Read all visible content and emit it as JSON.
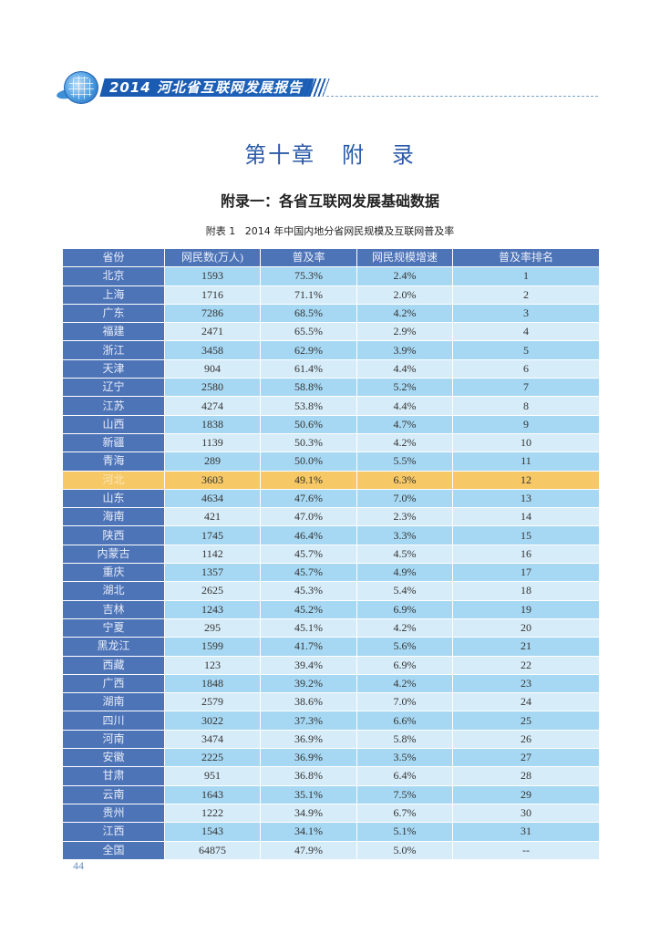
{
  "header": {
    "report_title": "2014 河北省互联网发展报告",
    "icon": "globe-icon"
  },
  "chapter": {
    "title": "第十章   附   录"
  },
  "section": {
    "title": "附录一：各省互联网发展基础数据"
  },
  "table": {
    "caption": "附表 1   2014 年中国内地分省网民规模及互联网普及率",
    "headers": [
      "省份",
      "网民数(万人)",
      "普及率",
      "网民规模增速",
      "普及率排名"
    ],
    "highlight_row": "河北",
    "highlight_color": "#f6c866",
    "rows": [
      {
        "province": "北京",
        "users": "1593",
        "rate": "75.3%",
        "growth": "2.4%",
        "rank": "1"
      },
      {
        "province": "上海",
        "users": "1716",
        "rate": "71.1%",
        "growth": "2.0%",
        "rank": "2"
      },
      {
        "province": "广东",
        "users": "7286",
        "rate": "68.5%",
        "growth": "4.2%",
        "rank": "3"
      },
      {
        "province": "福建",
        "users": "2471",
        "rate": "65.5%",
        "growth": "2.9%",
        "rank": "4"
      },
      {
        "province": "浙江",
        "users": "3458",
        "rate": "62.9%",
        "growth": "3.9%",
        "rank": "5"
      },
      {
        "province": "天津",
        "users": "904",
        "rate": "61.4%",
        "growth": "4.4%",
        "rank": "6"
      },
      {
        "province": "辽宁",
        "users": "2580",
        "rate": "58.8%",
        "growth": "5.2%",
        "rank": "7"
      },
      {
        "province": "江苏",
        "users": "4274",
        "rate": "53.8%",
        "growth": "4.4%",
        "rank": "8"
      },
      {
        "province": "山西",
        "users": "1838",
        "rate": "50.6%",
        "growth": "4.7%",
        "rank": "9"
      },
      {
        "province": "新疆",
        "users": "1139",
        "rate": "50.3%",
        "growth": "4.2%",
        "rank": "10"
      },
      {
        "province": "青海",
        "users": "289",
        "rate": "50.0%",
        "growth": "5.5%",
        "rank": "11"
      },
      {
        "province": "河北",
        "users": "3603",
        "rate": "49.1%",
        "growth": "6.3%",
        "rank": "12"
      },
      {
        "province": "山东",
        "users": "4634",
        "rate": "47.6%",
        "growth": "7.0%",
        "rank": "13"
      },
      {
        "province": "海南",
        "users": "421",
        "rate": "47.0%",
        "growth": "2.3%",
        "rank": "14"
      },
      {
        "province": "陕西",
        "users": "1745",
        "rate": "46.4%",
        "growth": "3.3%",
        "rank": "15"
      },
      {
        "province": "内蒙古",
        "users": "1142",
        "rate": "45.7%",
        "growth": "4.5%",
        "rank": "16"
      },
      {
        "province": "重庆",
        "users": "1357",
        "rate": "45.7%",
        "growth": "4.9%",
        "rank": "17"
      },
      {
        "province": "湖北",
        "users": "2625",
        "rate": "45.3%",
        "growth": "5.4%",
        "rank": "18"
      },
      {
        "province": "吉林",
        "users": "1243",
        "rate": "45.2%",
        "growth": "6.9%",
        "rank": "19"
      },
      {
        "province": "宁夏",
        "users": "295",
        "rate": "45.1%",
        "growth": "4.2%",
        "rank": "20"
      },
      {
        "province": "黑龙江",
        "users": "1599",
        "rate": "41.7%",
        "growth": "5.6%",
        "rank": "21"
      },
      {
        "province": "西藏",
        "users": "123",
        "rate": "39.4%",
        "growth": "6.9%",
        "rank": "22"
      },
      {
        "province": "广西",
        "users": "1848",
        "rate": "39.2%",
        "growth": "4.2%",
        "rank": "23"
      },
      {
        "province": "湖南",
        "users": "2579",
        "rate": "38.6%",
        "growth": "7.0%",
        "rank": "24"
      },
      {
        "province": "四川",
        "users": "3022",
        "rate": "37.3%",
        "growth": "6.6%",
        "rank": "25"
      },
      {
        "province": "河南",
        "users": "3474",
        "rate": "36.9%",
        "growth": "5.8%",
        "rank": "26"
      },
      {
        "province": "安徽",
        "users": "2225",
        "rate": "36.9%",
        "growth": "3.5%",
        "rank": "27"
      },
      {
        "province": "甘肃",
        "users": "951",
        "rate": "36.8%",
        "growth": "6.4%",
        "rank": "28"
      },
      {
        "province": "云南",
        "users": "1643",
        "rate": "35.1%",
        "growth": "7.5%",
        "rank": "29"
      },
      {
        "province": "贵州",
        "users": "1222",
        "rate": "34.9%",
        "growth": "6.7%",
        "rank": "30"
      },
      {
        "province": "江西",
        "users": "1543",
        "rate": "34.1%",
        "growth": "5.1%",
        "rank": "31"
      },
      {
        "province": "全国",
        "users": "64875",
        "rate": "47.9%",
        "growth": "5.0%",
        "rank": "--"
      }
    ]
  },
  "footer": {
    "page_number": "44"
  },
  "colors": {
    "header_bg": "#4e74b8",
    "row_odd": "#a7d8f3",
    "row_even": "#d6ecf9",
    "highlight": "#f6c866",
    "chapter_title": "#2a5aa8"
  }
}
